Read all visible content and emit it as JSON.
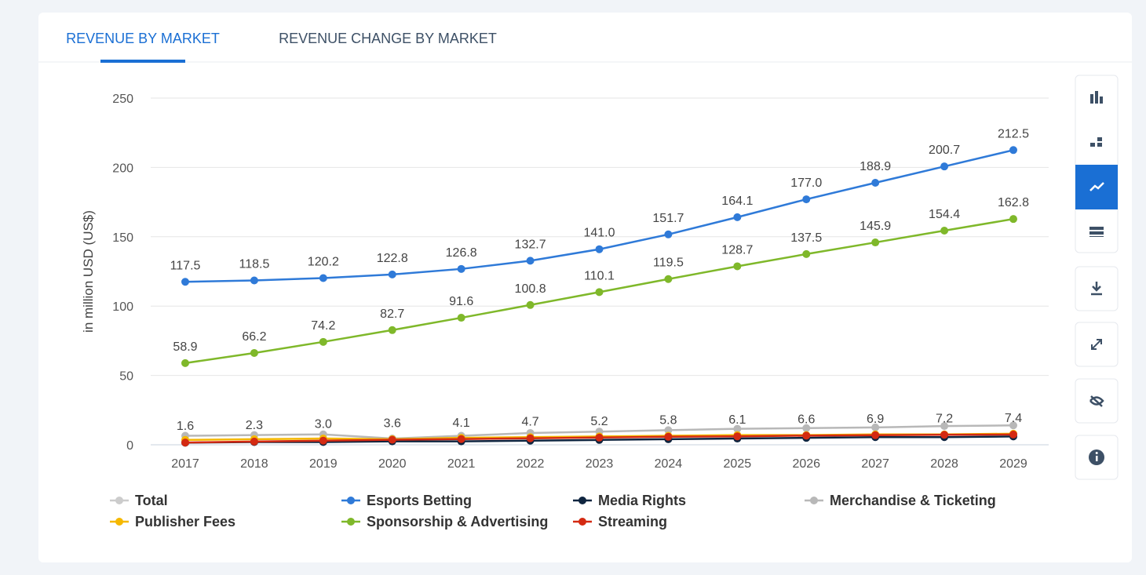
{
  "tabs": [
    "REVENUE BY MARKET",
    "REVENUE CHANGE BY MARKET"
  ],
  "chart_data": {
    "type": "line",
    "y_label": "in million USD (US$)",
    "categories": [
      "2017",
      "2018",
      "2019",
      "2020",
      "2021",
      "2022",
      "2023",
      "2024",
      "2025",
      "2026",
      "2027",
      "2028",
      "2029"
    ],
    "ylim": [
      0,
      250
    ],
    "yticks": [
      0,
      50,
      100,
      150,
      200,
      250
    ],
    "grid": true,
    "series": [
      {
        "name": "Total",
        "color": "#bbbbbb",
        "hidden": true
      },
      {
        "name": "Esports Betting",
        "color": "#2f7ad8",
        "values": [
          117.5,
          118.5,
          120.2,
          122.8,
          126.8,
          132.7,
          141,
          151.7,
          164.1,
          177,
          188.9,
          200.7,
          212.5
        ],
        "value_labels": [
          "117.5",
          "118.5",
          "120.2",
          "122.8",
          "126.8",
          "132.7",
          "141.0",
          "151.7",
          "164.1",
          "177.0",
          "188.9",
          "200.7",
          "212.5"
        ]
      },
      {
        "name": "Media Rights",
        "color": "#0f2540",
        "values": [
          1.5,
          2,
          2,
          2.5,
          2.5,
          3,
          3.5,
          4,
          4.5,
          5,
          5.5,
          5.5,
          6
        ]
      },
      {
        "name": "Merchandise & Ticketing",
        "color": "#b8b8b8",
        "values": [
          6.5,
          7,
          7.5,
          4.5,
          6.5,
          8.5,
          9.5,
          10.5,
          11.5,
          12,
          12.5,
          13.5,
          14
        ]
      },
      {
        "name": "Publisher Fees",
        "color": "#f5b800",
        "values": [
          3.5,
          4,
          4.5,
          4,
          5,
          5.5,
          6,
          6.5,
          7,
          7,
          7.5,
          7.5,
          8
        ]
      },
      {
        "name": "Sponsorship & Advertising",
        "color": "#7fb82a",
        "values": [
          58.9,
          66.2,
          74.2,
          82.7,
          91.6,
          100.8,
          110.1,
          119.5,
          128.7,
          137.5,
          145.9,
          154.4,
          162.8
        ],
        "value_labels": [
          "58.9",
          "66.2",
          "74.2",
          "82.7",
          "91.6",
          "100.8",
          "110.1",
          "119.5",
          "128.7",
          "137.5",
          "145.9",
          "154.4",
          "162.8"
        ]
      },
      {
        "name": "Streaming",
        "color": "#d42a12",
        "values": [
          1.6,
          2.3,
          3,
          3.6,
          4.1,
          4.7,
          5.2,
          5.8,
          6.1,
          6.6,
          6.9,
          7.2,
          7.4
        ],
        "value_labels": [
          "1.6",
          "2.3",
          "3.0",
          "3.6",
          "4.1",
          "4.7",
          "5.2",
          "5.8",
          "6.1",
          "6.6",
          "6.9",
          "7.2",
          "7.4"
        ]
      }
    ]
  }
}
